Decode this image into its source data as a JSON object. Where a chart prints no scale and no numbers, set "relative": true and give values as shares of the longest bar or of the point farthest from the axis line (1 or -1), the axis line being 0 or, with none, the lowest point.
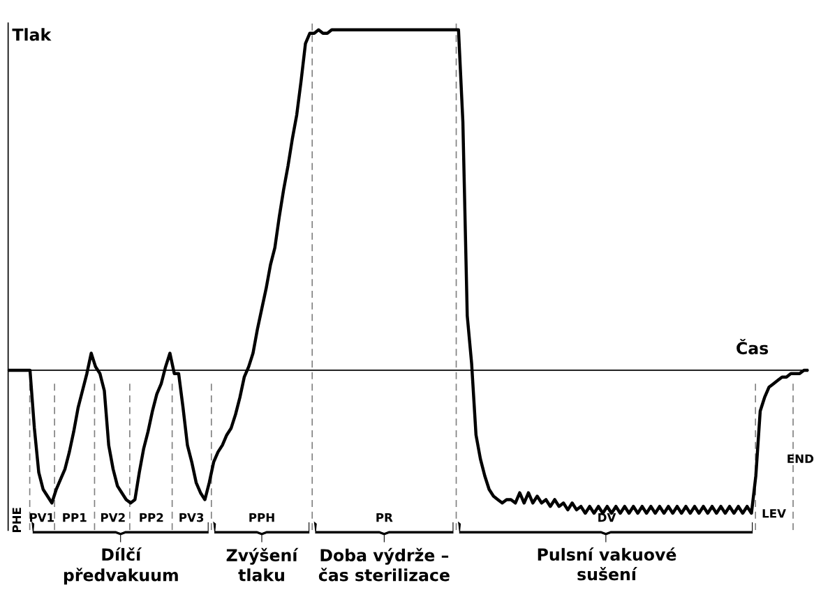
{
  "chart_data": {
    "type": "line",
    "relative": true,
    "ylabel": "Tlak",
    "xlabel": "Čas",
    "line_style": "solid",
    "categories": [
      null,
      null,
      null,
      null,
      null,
      null,
      null,
      null,
      null,
      null,
      null,
      null,
      null,
      null,
      null,
      null,
      null,
      null,
      null,
      null,
      null,
      null,
      null,
      null,
      null,
      null,
      null,
      null,
      null,
      null,
      null,
      null,
      null,
      null,
      null,
      null,
      null,
      null,
      null,
      null,
      null,
      null,
      null,
      null,
      null,
      null,
      null,
      null,
      null,
      null,
      null,
      null,
      null,
      null,
      null,
      null,
      null,
      null,
      null,
      null,
      null,
      null,
      null,
      null,
      null,
      null,
      null,
      null,
      null,
      null,
      null,
      null,
      null,
      null,
      null,
      null,
      null,
      null,
      null,
      null,
      null,
      null,
      null,
      null,
      null,
      null,
      null,
      null,
      null,
      null,
      null,
      null,
      null,
      null,
      null,
      null,
      null,
      null,
      null,
      null,
      null,
      null,
      null,
      null,
      null,
      null,
      null,
      null,
      null,
      null,
      null,
      null,
      null,
      null,
      null,
      null,
      null,
      null,
      null,
      null,
      null,
      null,
      null,
      null,
      null,
      null,
      null,
      null,
      null,
      null,
      null,
      null,
      null,
      null,
      null,
      null,
      null,
      null,
      null,
      null,
      null,
      null,
      null,
      null,
      null,
      null,
      null,
      null,
      null,
      null,
      null,
      null,
      null,
      null,
      null,
      null,
      null,
      null,
      null,
      null,
      null,
      null,
      null,
      null,
      null,
      null,
      null,
      null,
      null,
      null,
      null,
      null,
      null,
      null,
      null,
      null,
      null,
      null,
      null,
      null,
      null,
      null,
      null,
      null
    ],
    "series": [
      {
        "color": "#000000",
        "values": [
          0,
          0,
          0,
          0,
          0,
          0,
          -0.17,
          -0.3,
          -0.35,
          -0.37,
          -0.39,
          -0.35,
          -0.32,
          -0.29,
          -0.24,
          -0.18,
          -0.11,
          -0.06,
          -0.01,
          0.05,
          0.01,
          -0.01,
          -0.06,
          -0.22,
          -0.29,
          -0.34,
          -0.36,
          -0.38,
          -0.39,
          -0.38,
          -0.3,
          -0.23,
          -0.18,
          -0.12,
          -0.07,
          -0.04,
          0.01,
          0.05,
          -0.01,
          -0.01,
          -0.11,
          -0.22,
          -0.27,
          -0.33,
          -0.36,
          -0.38,
          -0.33,
          -0.27,
          -0.24,
          -0.22,
          -0.19,
          -0.17,
          -0.13,
          -0.08,
          -0.02,
          0.01,
          0.05,
          0.12,
          0.18,
          0.24,
          0.31,
          0.36,
          0.45,
          0.53,
          0.6,
          0.68,
          0.75,
          0.85,
          0.96,
          0.99,
          0.99,
          1,
          0.99,
          0.99,
          1,
          1,
          1,
          1,
          1,
          1,
          1,
          1,
          1,
          1,
          1,
          1,
          1,
          1,
          1,
          1,
          1,
          1,
          1,
          1,
          1,
          1,
          1,
          1,
          1,
          1,
          1,
          1,
          1,
          1,
          0.73,
          0.16,
          0.02,
          -0.19,
          -0.26,
          -0.31,
          -0.35,
          -0.37,
          -0.38,
          -0.39,
          -0.38,
          -0.38,
          -0.39,
          -0.36,
          -0.39,
          -0.36,
          -0.39,
          -0.37,
          -0.39,
          -0.38,
          -0.4,
          -0.38,
          -0.4,
          -0.39,
          -0.41,
          -0.39,
          -0.41,
          -0.4,
          -0.42,
          -0.4,
          -0.42,
          -0.4,
          -0.42,
          -0.4,
          -0.42,
          -0.4,
          -0.42,
          -0.4,
          -0.42,
          -0.4,
          -0.42,
          -0.4,
          -0.42,
          -0.4,
          -0.42,
          -0.4,
          -0.42,
          -0.4,
          -0.42,
          -0.4,
          -0.42,
          -0.4,
          -0.42,
          -0.4,
          -0.42,
          -0.4,
          -0.42,
          -0.4,
          -0.42,
          -0.4,
          -0.42,
          -0.4,
          -0.42,
          -0.4,
          -0.42,
          -0.4,
          -0.42,
          -0.31,
          -0.12,
          -0.08,
          -0.05,
          -0.04,
          -0.03,
          -0.02,
          -0.02,
          -0.01,
          -0.01,
          -0.01,
          0,
          0
        ]
      }
    ],
    "annotations": [
      "PHE",
      "PV1",
      "PP1",
      "PV2",
      "PP2",
      "PV3",
      "PPH",
      "PR",
      "DV",
      "LEV",
      "END",
      "Dílčí\npředvakuum",
      "Zvýšení\ntlaku",
      "Doba výdrže –\nčas sterilizace",
      "Pulsní vakuové\nsušení"
    ]
  }
}
